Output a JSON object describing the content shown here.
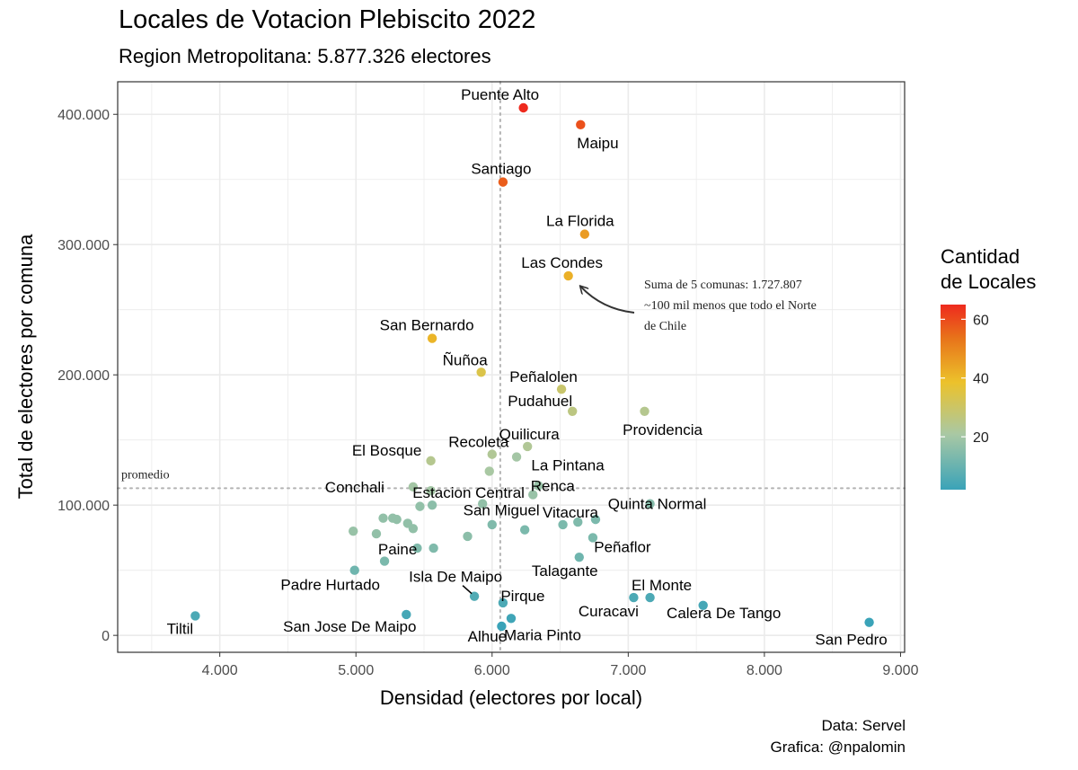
{
  "chart_data": {
    "type": "scatter",
    "title": "Locales de Votacion Plebiscito 2022",
    "subtitle": "Region Metropolitana: 5.877.326 electores",
    "xlabel": "Densidad (electores por local)",
    "ylabel": "Total de electores por comuna",
    "xlim": [
      3250,
      9030
    ],
    "ylim": [
      -13000,
      425000
    ],
    "x_ticks": [
      4000,
      5000,
      6000,
      7000,
      8000,
      9000
    ],
    "x_tick_labels": [
      "4.000",
      "5.000",
      "6.000",
      "7.000",
      "8.000",
      "9.000"
    ],
    "y_ticks": [
      0,
      100000,
      200000,
      300000,
      400000
    ],
    "y_tick_labels": [
      "0",
      "100.000",
      "200.000",
      "300.000",
      "400.000"
    ],
    "grid": true,
    "reference_lines": {
      "x_mean": 6060,
      "y_mean": 113000,
      "y_label": "promedio"
    },
    "annotation": {
      "lines": [
        "Suma de 5 comunas: 1.727.807",
        "~100 mil menos que todo el Norte",
        "de Chile"
      ],
      "arrow_target": [
        6650,
        272000
      ]
    },
    "legend": {
      "title": [
        "Cantidad",
        "de Locales"
      ],
      "ticks": [
        20,
        40,
        60
      ],
      "range": [
        2,
        65
      ],
      "placement": "right"
    },
    "colors": {
      "low": "#3aa3b8",
      "mid_low": "#a9c8a4",
      "mid": "#ecc22b",
      "mid_high": "#e8731a",
      "high": "#ee2a1e"
    },
    "caption": [
      "Data: Servel",
      "Grafica: @npalomin"
    ],
    "points": [
      {
        "label": "Puente Alto",
        "x": 6230,
        "y": 405000,
        "locales": 65
      },
      {
        "label": "Maipu",
        "x": 6650,
        "y": 392000,
        "locales": 59
      },
      {
        "label": "Santiago",
        "x": 6080,
        "y": 348000,
        "locales": 57
      },
      {
        "label": "La Florida",
        "x": 6680,
        "y": 308000,
        "locales": 46
      },
      {
        "label": "Las Condes",
        "x": 6560,
        "y": 276000,
        "locales": 42
      },
      {
        "label": "San Bernardo",
        "x": 5560,
        "y": 228000,
        "locales": 41
      },
      {
        "label": "Ñuñoa",
        "x": 5920,
        "y": 202000,
        "locales": 34
      },
      {
        "label": "Peñalolen",
        "x": 6510,
        "y": 189000,
        "locales": 29
      },
      {
        "label": "Pudahuel",
        "x": 6590,
        "y": 172000,
        "locales": 26
      },
      {
        "label": "Providencia",
        "x": 7120,
        "y": 172000,
        "locales": 24
      },
      {
        "label": "Quilicura",
        "x": 6260,
        "y": 145000,
        "locales": 23
      },
      {
        "label": "Recoleta",
        "x": 6000,
        "y": 139000,
        "locales": 23
      },
      {
        "label": "El Bosque",
        "x": 5550,
        "y": 134000,
        "locales": 24
      },
      {
        "label": "La Pintana",
        "x": 6180,
        "y": 137000,
        "locales": 20
      },
      {
        "label": "",
        "x": 5980,
        "y": 126000,
        "locales": 21
      },
      {
        "label": "Conchali",
        "x": 5420,
        "y": 114000,
        "locales": 20
      },
      {
        "label": "Estacion Central",
        "x": 5550,
        "y": 111000,
        "locales": 20
      },
      {
        "label": "Renca",
        "x": 6340,
        "y": 115000,
        "locales": 18
      },
      {
        "label": "",
        "x": 6300,
        "y": 108000,
        "locales": 18
      },
      {
        "label": "Quinta Normal",
        "x": 7160,
        "y": 101000,
        "locales": 15
      },
      {
        "label": "San Miguel",
        "x": 5930,
        "y": 101000,
        "locales": 17
      },
      {
        "label": "Vitacura",
        "x": 6760,
        "y": 89000,
        "locales": 13
      },
      {
        "label": "",
        "x": 6630,
        "y": 87000,
        "locales": 14
      },
      {
        "label": "",
        "x": 6520,
        "y": 85000,
        "locales": 13
      },
      {
        "label": "",
        "x": 6240,
        "y": 81000,
        "locales": 13
      },
      {
        "label": "",
        "x": 6000,
        "y": 85000,
        "locales": 14
      },
      {
        "label": "",
        "x": 5560,
        "y": 100000,
        "locales": 16
      },
      {
        "label": "",
        "x": 5470,
        "y": 99000,
        "locales": 17
      },
      {
        "label": "",
        "x": 5300,
        "y": 89000,
        "locales": 17
      },
      {
        "label": "",
        "x": 5270,
        "y": 90000,
        "locales": 17
      },
      {
        "label": "",
        "x": 5200,
        "y": 90000,
        "locales": 17
      },
      {
        "label": "",
        "x": 5380,
        "y": 86000,
        "locales": 17
      },
      {
        "label": "",
        "x": 5420,
        "y": 82000,
        "locales": 17
      },
      {
        "label": "",
        "x": 4980,
        "y": 80000,
        "locales": 18
      },
      {
        "label": "",
        "x": 5150,
        "y": 78000,
        "locales": 17
      },
      {
        "label": "",
        "x": 5820,
        "y": 76000,
        "locales": 16
      },
      {
        "label": "Peñaflor",
        "x": 6740,
        "y": 75000,
        "locales": 13
      },
      {
        "label": "Paine",
        "x": 5570,
        "y": 67000,
        "locales": 14
      },
      {
        "label": "",
        "x": 5450,
        "y": 67000,
        "locales": 14
      },
      {
        "label": "Talagante",
        "x": 6640,
        "y": 60000,
        "locales": 11
      },
      {
        "label": "",
        "x": 5210,
        "y": 57000,
        "locales": 13
      },
      {
        "label": "Padre Hurtado",
        "x": 4990,
        "y": 50000,
        "locales": 11
      },
      {
        "label": "Isla De Maipo",
        "x": 5870,
        "y": 30000,
        "locales": 6
      },
      {
        "label": "El Monte",
        "x": 7160,
        "y": 29000,
        "locales": 5
      },
      {
        "label": "Curacavi",
        "x": 7040,
        "y": 29000,
        "locales": 5
      },
      {
        "label": "Pirque",
        "x": 6080,
        "y": 25000,
        "locales": 5
      },
      {
        "label": "Calera De Tango",
        "x": 7550,
        "y": 23000,
        "locales": 4
      },
      {
        "label": "Tiltil",
        "x": 3820,
        "y": 15000,
        "locales": 5
      },
      {
        "label": "San Jose De Maipo",
        "x": 5370,
        "y": 16000,
        "locales": 4
      },
      {
        "label": "Maria Pinto",
        "x": 6140,
        "y": 13000,
        "locales": 3
      },
      {
        "label": "Alhue",
        "x": 6070,
        "y": 7000,
        "locales": 2
      },
      {
        "label": "San Pedro",
        "x": 8770,
        "y": 10000,
        "locales": 2
      }
    ]
  }
}
